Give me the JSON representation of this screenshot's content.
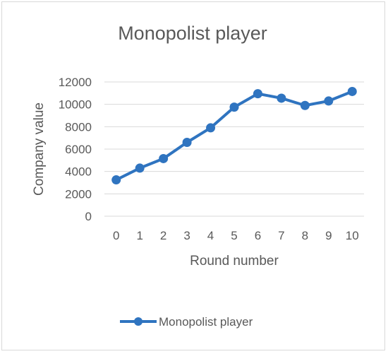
{
  "chart_data": {
    "type": "line",
    "title": "Monopolist player",
    "xlabel": "Round number",
    "ylabel": "Company value",
    "categories": [
      "0",
      "1",
      "2",
      "3",
      "4",
      "5",
      "6",
      "7",
      "8",
      "9",
      "10"
    ],
    "ylim": [
      0,
      12000
    ],
    "yticks": [
      "0",
      "2000",
      "4000",
      "6000",
      "8000",
      "10000",
      "12000"
    ],
    "grid": true,
    "legend_position": "bottom-left",
    "series": [
      {
        "name": "Monopolist player",
        "color": "#2F74C0",
        "marker": "circle",
        "values": [
          3250,
          4300,
          5150,
          6600,
          7900,
          9750,
          10950,
          10550,
          9900,
          10300,
          11150
        ]
      }
    ]
  }
}
